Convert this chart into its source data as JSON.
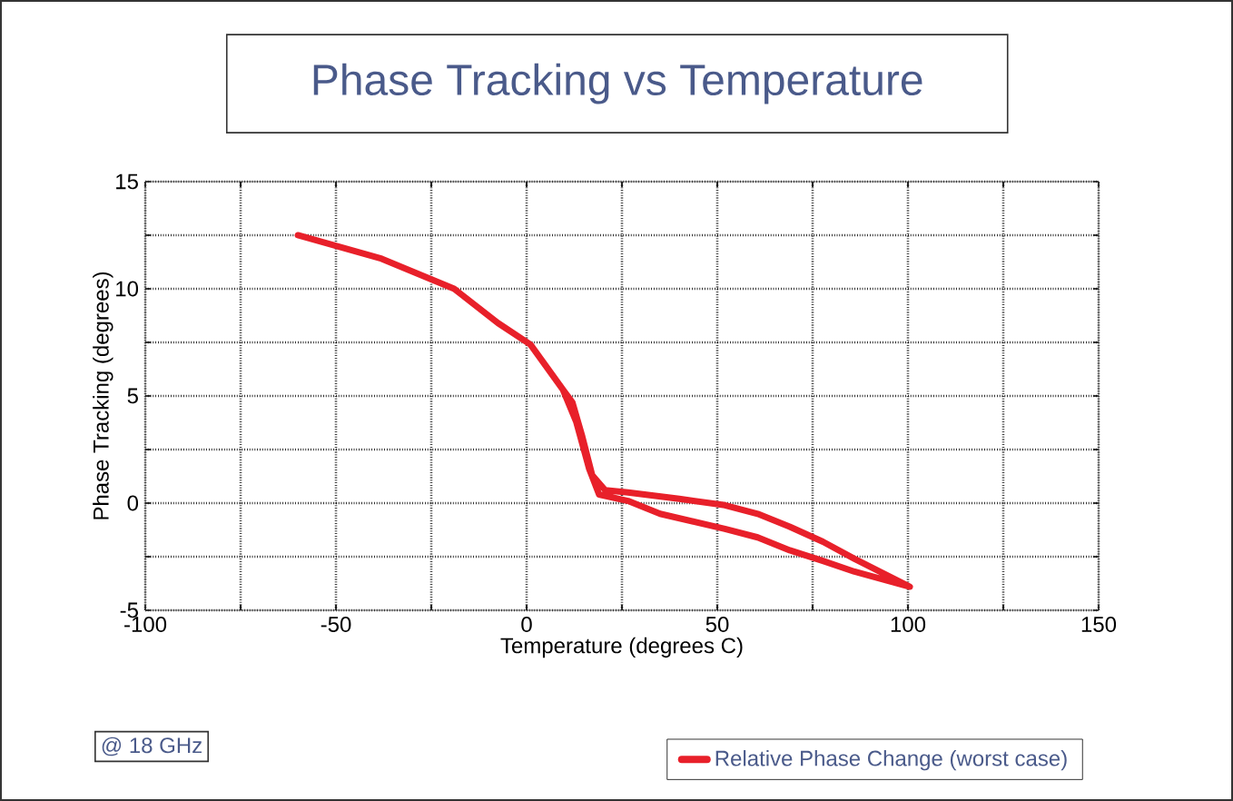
{
  "chart_data": {
    "type": "line",
    "title": "Phase Tracking vs Temperature",
    "xlabel": "Temperature (degrees C)",
    "ylabel": "Phase Tracking (degrees)",
    "annotations": [
      "@ 18 GHz"
    ],
    "xlim": [
      -100,
      150
    ],
    "ylim": [
      -5,
      15
    ],
    "xticks": [
      -100,
      {
        "value": -75,
        "label": null
      },
      -50,
      {
        "value": -25,
        "label": null
      },
      0,
      {
        "value": 25,
        "label": null
      },
      50,
      {
        "value": 75,
        "label": null
      },
      100,
      {
        "value": 125,
        "label": null
      },
      150
    ],
    "yticks": [
      -5,
      {
        "value": -2.5,
        "label": null
      },
      0,
      {
        "value": 2.5,
        "label": null
      },
      5,
      {
        "value": 7.5,
        "label": null
      },
      10,
      {
        "value": 12.5,
        "label": null
      },
      15
    ],
    "grid": true,
    "legend": "bottom right",
    "marker": "none",
    "line_style": "solid",
    "series": [
      {
        "name": "Relative Phase Change (worst case)",
        "color": "#e8202a",
        "x": [
          -60,
          -38,
          -19,
          -7.5,
          1,
          9.5,
          13,
          16.4,
          19,
          26.6,
          35,
          52,
          60.6,
          69,
          77.7,
          86,
          100.5,
          86,
          77.7,
          69,
          60.6,
          52,
          40,
          26.6,
          20.6,
          17.2,
          14.6,
          12,
          9.5
        ],
        "values": [
          12.5,
          11.4,
          10.0,
          8.4,
          7.4,
          5.3,
          3.8,
          1.6,
          0.4,
          0.1,
          -0.5,
          -1.2,
          -1.6,
          -2.2,
          -2.7,
          -3.2,
          -3.9,
          -2.6,
          -1.8,
          -1.1,
          -0.5,
          -0.1,
          0.2,
          0.5,
          0.6,
          1.3,
          3.1,
          4.7,
          5.3
        ]
      }
    ]
  }
}
